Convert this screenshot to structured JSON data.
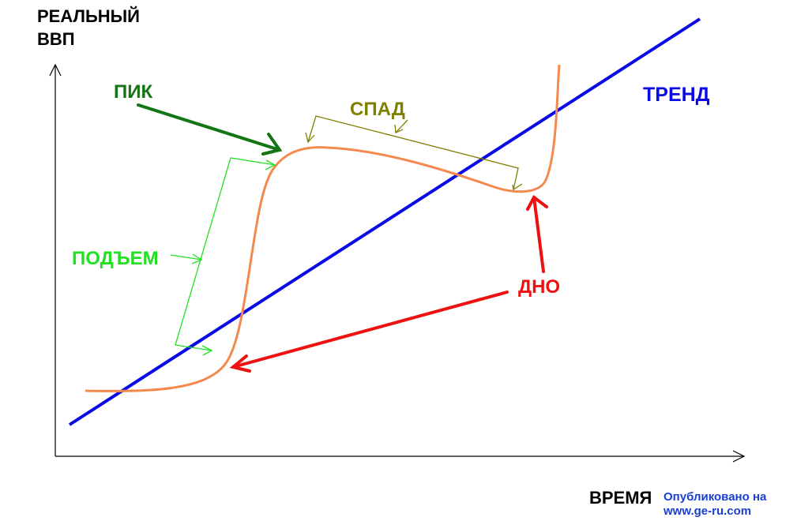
{
  "axes": {
    "y_label": [
      "РЕАЛЬНЫЙ",
      "ВВП"
    ],
    "x_label": "ВРЕМЯ"
  },
  "labels": {
    "peak": "ПИК",
    "recession": "СПАД",
    "trend": "ТРЕНД",
    "expansion": "ПОДЪЕМ",
    "trough": "ДНО"
  },
  "watermark": [
    "Опубликовано на",
    "www.ge-ru.com"
  ]
}
